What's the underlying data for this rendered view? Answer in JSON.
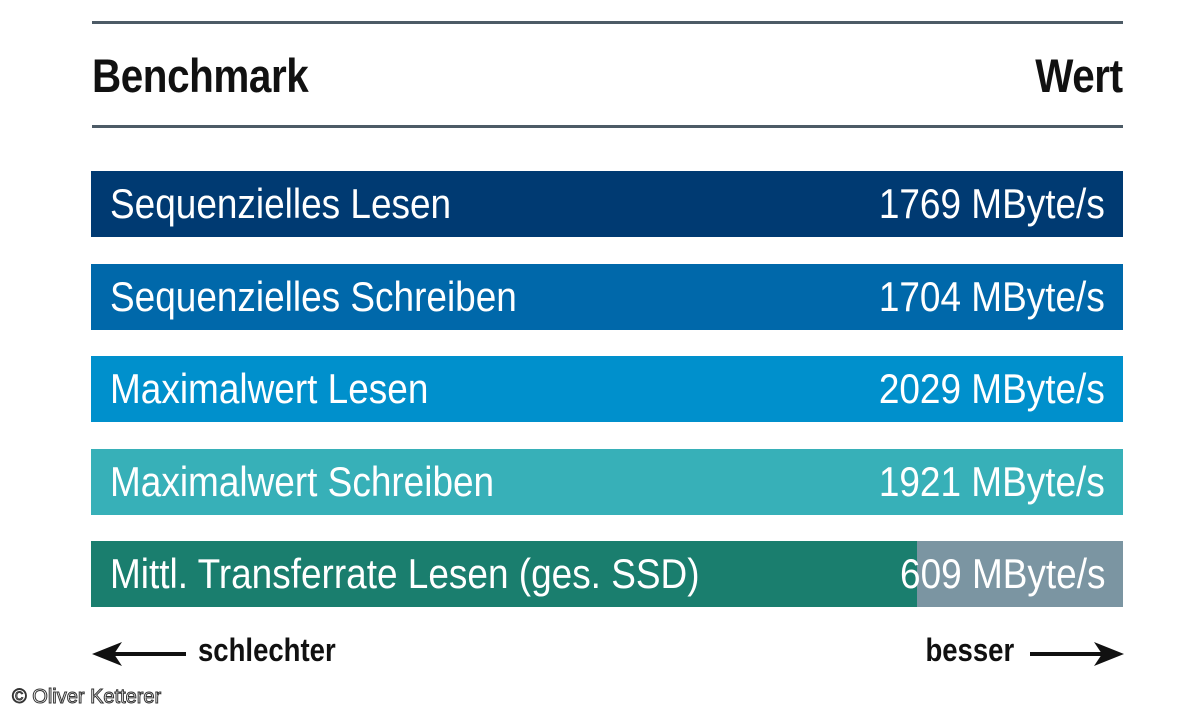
{
  "header": {
    "title": "Benchmark",
    "value_label": "Wert"
  },
  "chart_data": {
    "type": "bar",
    "orientation": "horizontal",
    "unit": "MByte/s",
    "categories": [
      "Sequenzielles Lesen",
      "Sequenzielles Schreiben",
      "Maximalwert Lesen",
      "Maximalwert Schreiben",
      "Mittl. Transferrate Lesen (ges. SSD)"
    ],
    "values": [
      1769,
      1704,
      2029,
      1921,
      609
    ],
    "value_labels": [
      "1769 MByte/s",
      "1704 MByte/s",
      "2029 MByte/s",
      "1921 MByte/s",
      "609 MByte/s"
    ],
    "fill_fraction": [
      1,
      1,
      1,
      1,
      0.8
    ],
    "colors": [
      "#003a72",
      "#0068aa",
      "#0090cc",
      "#37b0b8",
      "#1a7e6e"
    ],
    "remainder_color": "#7b95a2"
  },
  "footer": {
    "worse": "schlechter",
    "better": "besser"
  },
  "credit": "© Oliver Ketterer"
}
